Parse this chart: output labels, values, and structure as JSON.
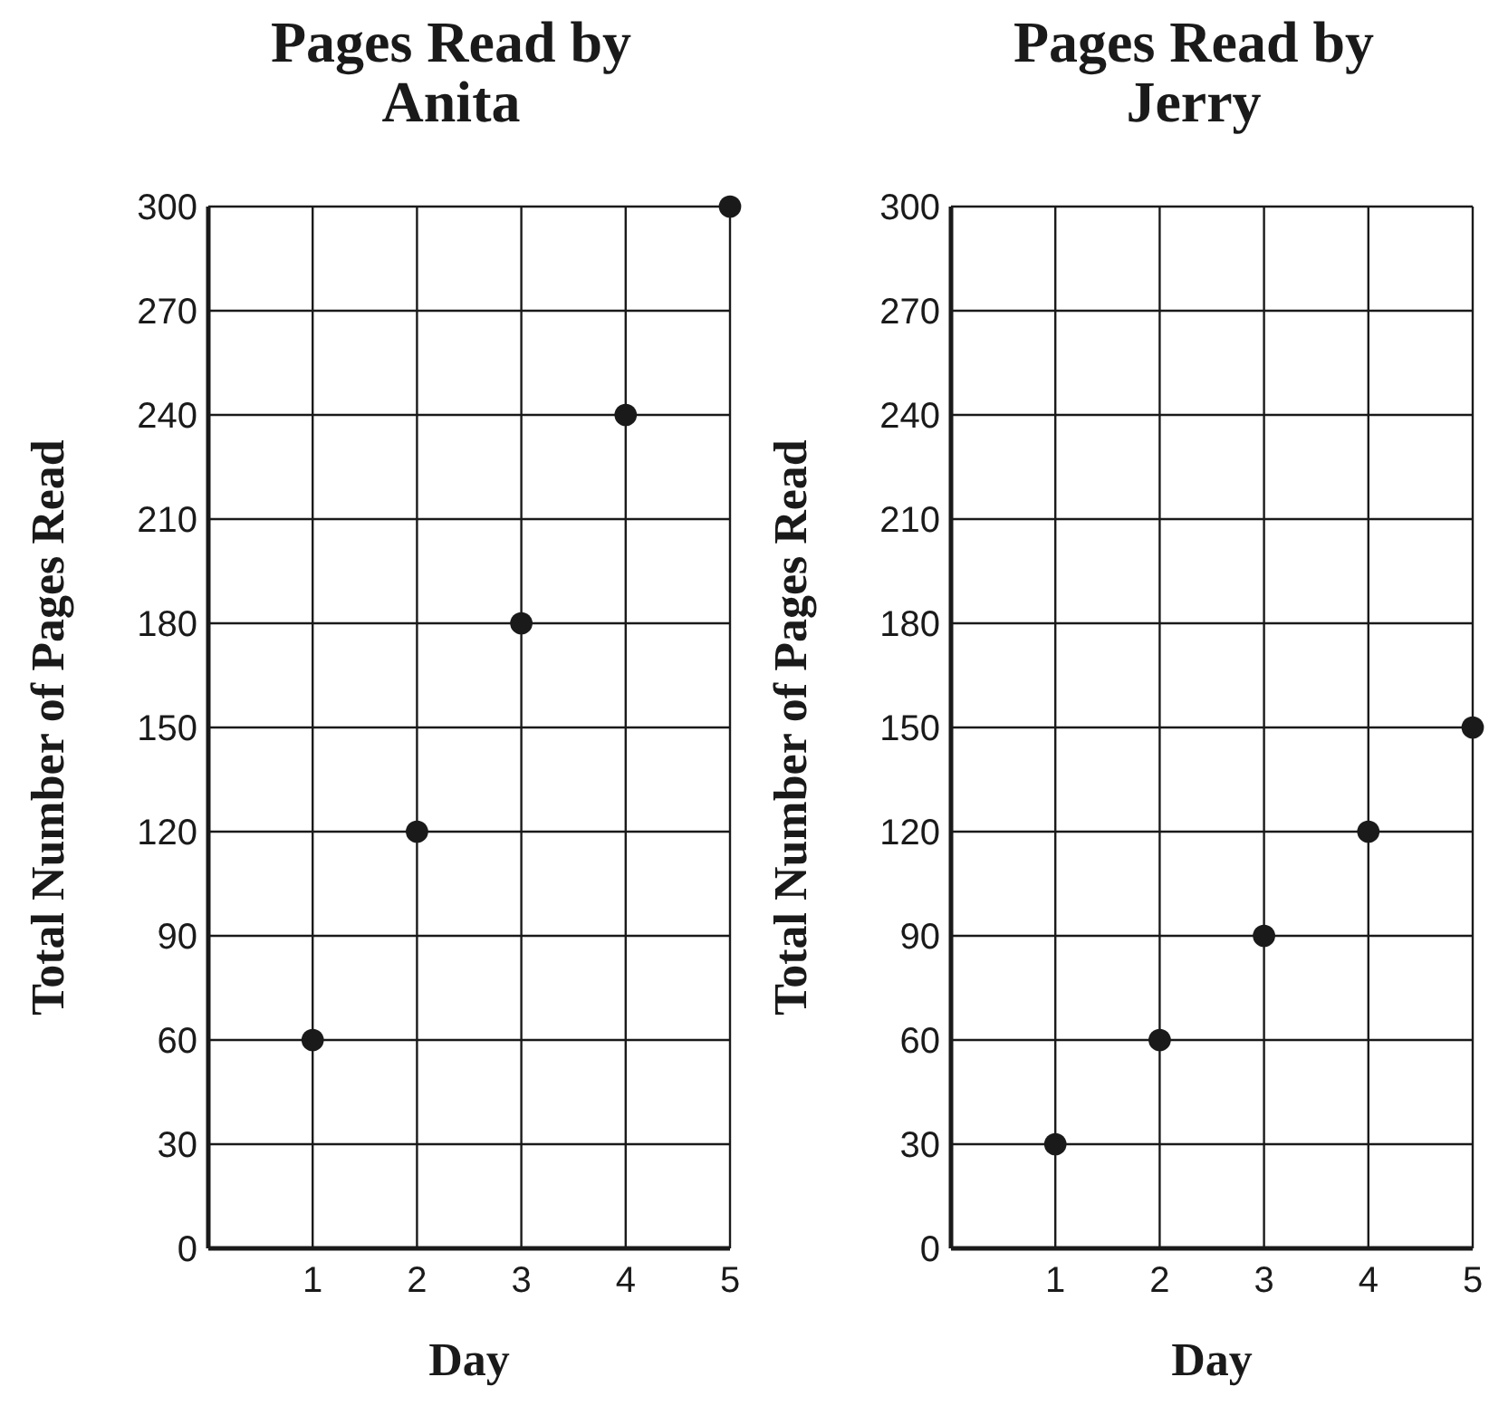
{
  "chart_data": [
    {
      "type": "scatter",
      "title": "Pages Read by Anita",
      "xlabel": "Day",
      "ylabel": "Total Number of Pages Read",
      "x": [
        1,
        2,
        3,
        4,
        5
      ],
      "values": [
        60,
        120,
        180,
        240,
        300
      ],
      "color": "#1a1a1a",
      "xlim": [
        0,
        5
      ],
      "xticks": [
        1,
        2,
        3,
        4,
        5
      ],
      "ylim": [
        0,
        300
      ],
      "yticks": [
        0,
        30,
        60,
        90,
        120,
        150,
        180,
        210,
        240,
        270,
        300
      ],
      "grid": true,
      "marker": "circle"
    },
    {
      "type": "scatter",
      "title": "Pages Read by Jerry",
      "xlabel": "Day",
      "ylabel": "Total Number of Pages Read",
      "x": [
        1,
        2,
        3,
        4,
        5
      ],
      "values": [
        30,
        60,
        90,
        120,
        150
      ],
      "color": "#1a1a1a",
      "xlim": [
        0,
        5
      ],
      "xticks": [
        1,
        2,
        3,
        4,
        5
      ],
      "ylim": [
        0,
        300
      ],
      "yticks": [
        0,
        30,
        60,
        90,
        120,
        150,
        180,
        210,
        240,
        270,
        300
      ],
      "grid": true,
      "marker": "circle"
    }
  ]
}
